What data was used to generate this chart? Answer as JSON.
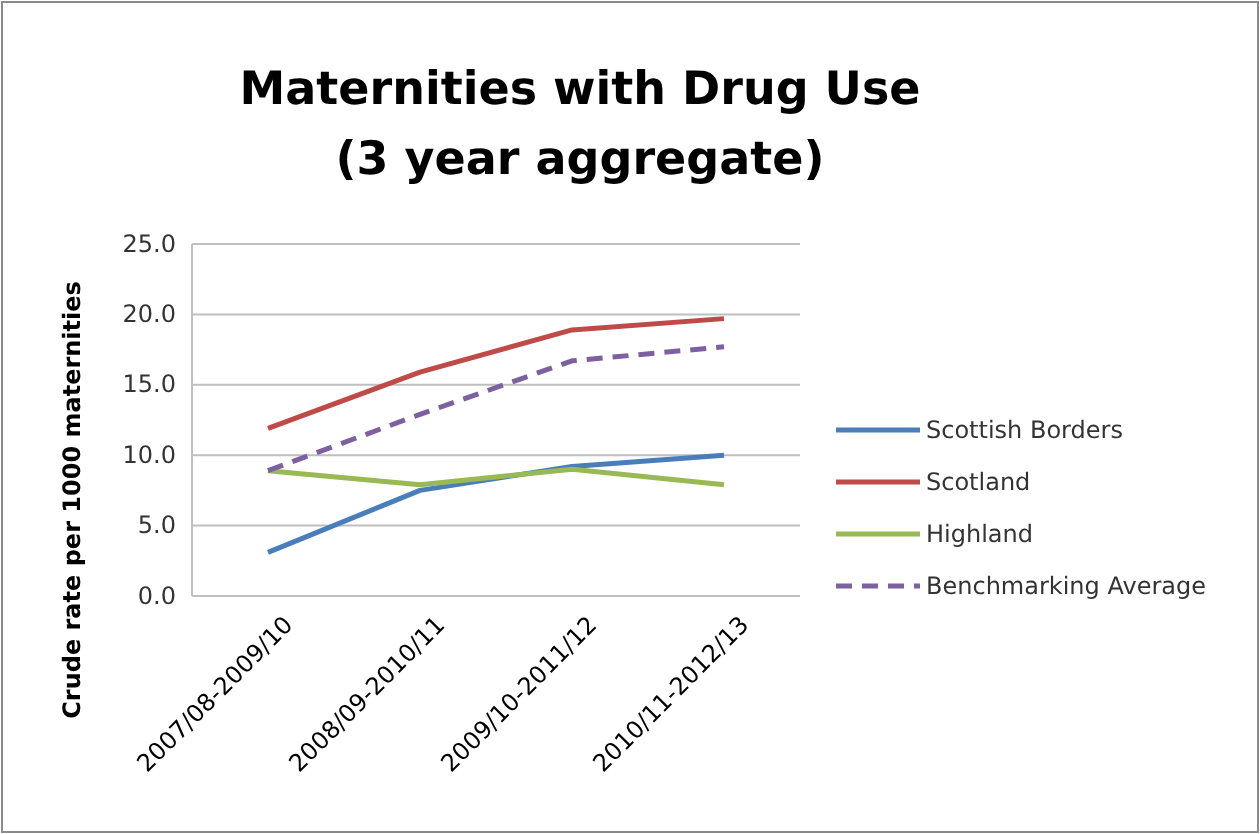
{
  "chart_data": {
    "type": "line",
    "title": "Maternities with Drug Use\n(3 year aggregate)",
    "ylabel": "Crude rate per 1000 maternities",
    "categories": [
      "2007/08-2009/10",
      "2008/09-2010/11",
      "2009/10-2011/12",
      "2010/11-2012/13"
    ],
    "series": [
      {
        "name": "Scottish Borders",
        "color": "#4a7ebb",
        "values": [
          3.1,
          7.5,
          9.2,
          10.0
        ]
      },
      {
        "name": "Scotland",
        "color": "#be4b48",
        "values": [
          11.9,
          15.9,
          18.9,
          19.7
        ]
      },
      {
        "name": "Highland",
        "color": "#98b954",
        "values": [
          8.9,
          7.9,
          9.0,
          7.9
        ]
      },
      {
        "name": "Benchmarking Average",
        "color": "#7d60a0",
        "values": [
          8.9,
          12.9,
          16.7,
          17.7
        ],
        "line_style": "dashed"
      }
    ],
    "ylim": [
      0,
      25
    ],
    "yticks": [
      {
        "value": 0,
        "label": "0.0"
      },
      {
        "value": 5,
        "label": "5.0"
      },
      {
        "value": 10,
        "label": "10.0"
      },
      {
        "value": 15,
        "label": "15.0"
      },
      {
        "value": 20,
        "label": "20.0"
      },
      {
        "value": 25,
        "label": "25.0"
      }
    ],
    "grid": "y",
    "legend": "right",
    "marker": "none",
    "line_style": "solid"
  }
}
